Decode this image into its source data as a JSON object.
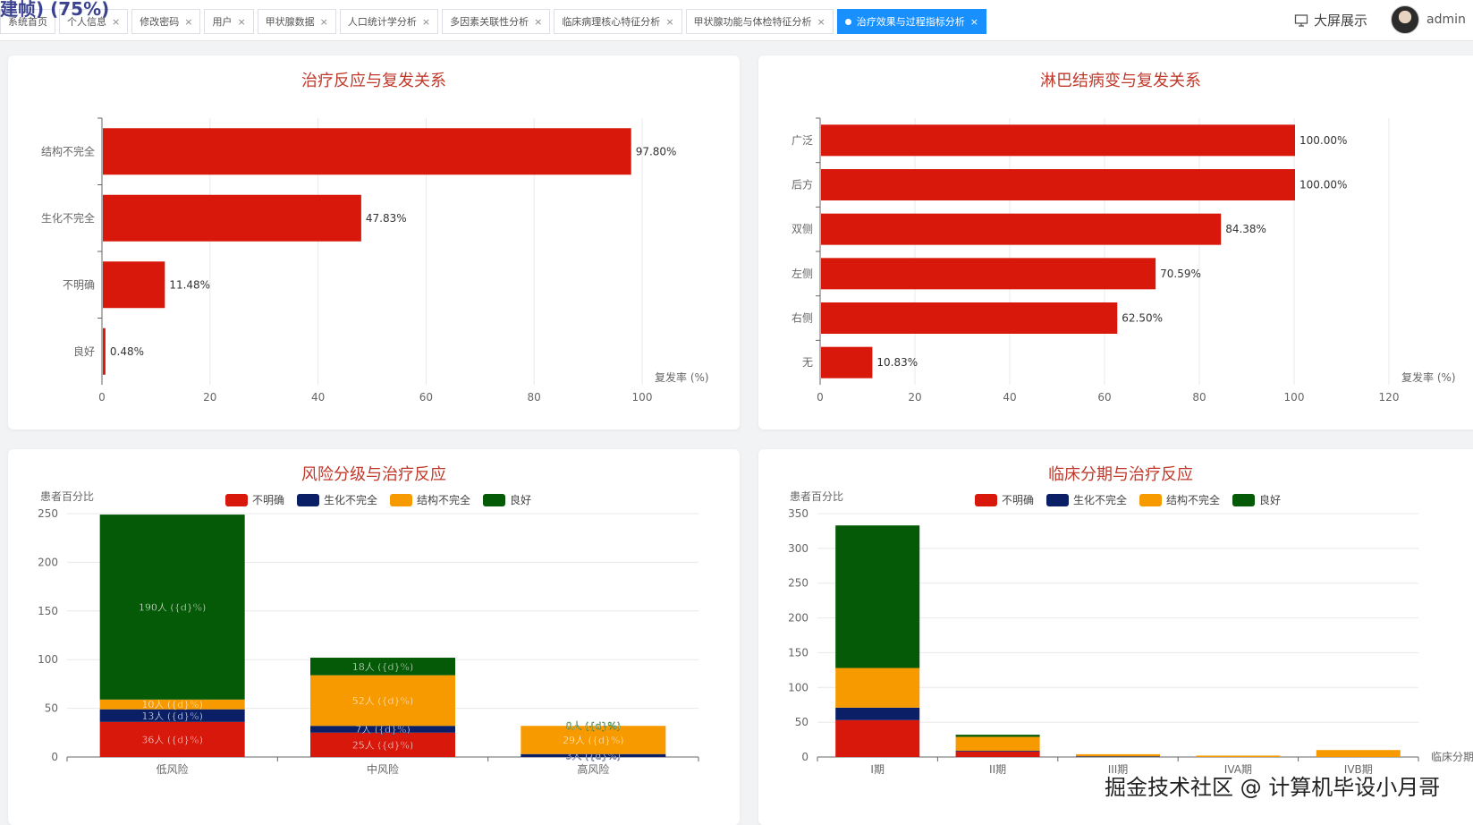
{
  "header": {
    "overlay_text": "建帧) (75%)",
    "tabs": [
      {
        "label": "系统首页",
        "closable": false,
        "active": false
      },
      {
        "label": "个人信息",
        "closable": true,
        "active": false
      },
      {
        "label": "修改密码",
        "closable": true,
        "active": false
      },
      {
        "label": "用户",
        "closable": true,
        "active": false
      },
      {
        "label": "甲状腺数据",
        "closable": true,
        "active": false
      },
      {
        "label": "人口统计学分析",
        "closable": true,
        "active": false
      },
      {
        "label": "多因素关联性分析",
        "closable": true,
        "active": false
      },
      {
        "label": "临床病理核心特征分析",
        "closable": true,
        "active": false
      },
      {
        "label": "甲状腺功能与体检特征分析",
        "closable": true,
        "active": false
      },
      {
        "label": "治疗效果与过程指标分析",
        "closable": true,
        "active": true
      }
    ],
    "close_glyph": "×",
    "screen_label": "大屏展示",
    "screen_icon": "monitor-icon",
    "username": "admin"
  },
  "watermark": "掘金技术社区 @ 计算机毕设小月哥",
  "colors": {
    "red": "#d7180b",
    "navy": "#0a1f66",
    "orange": "#f79a00",
    "green": "#045a06",
    "title": "#c0392b"
  },
  "chart_data": [
    {
      "id": "treatment-relapse",
      "type": "bar",
      "orientation": "horizontal",
      "title": "治疗反应与复发关系",
      "categories": [
        "结构不完全",
        "生化不完全",
        "不明确",
        "良好"
      ],
      "values": [
        97.8,
        47.83,
        11.48,
        0.48
      ],
      "labels": [
        "97.80%",
        "47.83%",
        "11.48%",
        "0.48%"
      ],
      "xlabel": "复发率 (%)",
      "xlim": [
        0,
        100
      ],
      "xticks": [
        0,
        20,
        40,
        60,
        80,
        100
      ],
      "color": "#d7180b",
      "grid": true
    },
    {
      "id": "lymph-relapse",
      "type": "bar",
      "orientation": "horizontal",
      "title": "淋巴结病变与复发关系",
      "categories": [
        "广泛",
        "后方",
        "双侧",
        "左侧",
        "右侧",
        "无"
      ],
      "values": [
        100.0,
        100.0,
        84.38,
        70.59,
        62.5,
        10.83
      ],
      "labels": [
        "100.00%",
        "100.00%",
        "84.38%",
        "70.59%",
        "62.50%",
        "10.83%"
      ],
      "xlabel": "复发率 (%)",
      "xlim": [
        0,
        120
      ],
      "xticks": [
        0,
        20,
        40,
        60,
        80,
        100,
        120
      ],
      "color": "#d7180b",
      "grid": true
    },
    {
      "id": "risk-response",
      "type": "bar",
      "stacked": true,
      "title": "风险分级与治疗反应",
      "ylabel": "患者百分比",
      "categories": [
        "低风险",
        "中风险",
        "高风险"
      ],
      "ylim": [
        0,
        250
      ],
      "yticks": [
        0,
        50,
        100,
        150,
        200,
        250
      ],
      "legend_position": "top",
      "series": [
        {
          "name": "不明确",
          "color": "#d7180b",
          "values": [
            36,
            25,
            0
          ],
          "labels": [
            "36人 ({d}%)",
            "25人 ({d}%)",
            ""
          ]
        },
        {
          "name": "生化不完全",
          "color": "#0a1f66",
          "values": [
            13,
            7,
            3
          ],
          "labels": [
            "13人 ({d}%)",
            "7人 ({d}%)",
            "3人 ({d}%)"
          ]
        },
        {
          "name": "结构不完全",
          "color": "#f79a00",
          "values": [
            10,
            52,
            29
          ],
          "labels": [
            "10人 ({d}%)",
            "52人 ({d}%)",
            "29人 ({d}%)"
          ]
        },
        {
          "name": "良好",
          "color": "#045a06",
          "values": [
            190,
            18,
            0
          ],
          "labels": [
            "190人 ({d}%)",
            "18人 ({d}%)",
            "0人 ({d}%)"
          ]
        }
      ]
    },
    {
      "id": "stage-response",
      "type": "bar",
      "stacked": true,
      "title": "临床分期与治疗反应",
      "ylabel": "患者百分比",
      "xlabel": "临床分期",
      "categories": [
        "I期",
        "II期",
        "III期",
        "IVA期",
        "IVB期"
      ],
      "ylim": [
        0,
        350
      ],
      "yticks": [
        0,
        50,
        100,
        150,
        200,
        250,
        300,
        350
      ],
      "legend_position": "top",
      "series": [
        {
          "name": "不明确",
          "color": "#d7180b",
          "values": [
            53,
            8,
            0,
            0,
            0
          ]
        },
        {
          "name": "生化不完全",
          "color": "#0a1f66",
          "values": [
            18,
            1,
            1,
            0,
            0
          ]
        },
        {
          "name": "结构不完全",
          "color": "#f79a00",
          "values": [
            57,
            20,
            3,
            2,
            10
          ]
        },
        {
          "name": "良好",
          "color": "#045a06",
          "values": [
            205,
            3,
            0,
            0,
            0
          ]
        }
      ]
    }
  ]
}
